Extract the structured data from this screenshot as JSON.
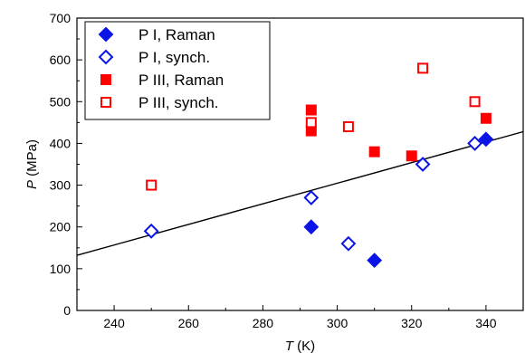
{
  "chart_data": {
    "type": "scatter",
    "title": "",
    "xlabel": {
      "italic": "T",
      "unit": " (K)"
    },
    "ylabel": {
      "italic": "P",
      "unit": " (MPa)"
    },
    "xlim": [
      230,
      350
    ],
    "ylim": [
      0,
      700
    ],
    "xticks": [
      240,
      260,
      280,
      300,
      320,
      340
    ],
    "yticks": [
      0,
      100,
      200,
      300,
      400,
      500,
      600,
      700
    ],
    "grid": false,
    "legend_position": "top-left",
    "series": [
      {
        "name": "P I, Raman",
        "marker": "diamond",
        "filled": true,
        "color": "#0a14e6",
        "points": [
          [
            293,
            200
          ],
          [
            310,
            120
          ],
          [
            340,
            410
          ]
        ]
      },
      {
        "name": "P I, synch.",
        "marker": "diamond",
        "filled": false,
        "color": "#0a14e6",
        "points": [
          [
            250,
            190
          ],
          [
            293,
            270
          ],
          [
            303,
            160
          ],
          [
            323,
            350
          ],
          [
            337,
            400
          ]
        ]
      },
      {
        "name": "P III, Raman",
        "marker": "square",
        "filled": true,
        "color": "#ff0000",
        "points": [
          [
            293,
            480
          ],
          [
            293,
            430
          ],
          [
            310,
            380
          ],
          [
            320,
            370
          ],
          [
            340,
            460
          ]
        ]
      },
      {
        "name": "P III, synch.",
        "marker": "square",
        "filled": false,
        "color": "#ff0000",
        "points": [
          [
            250,
            300
          ],
          [
            293,
            450
          ],
          [
            303,
            440
          ],
          [
            323,
            580
          ],
          [
            337,
            500
          ]
        ]
      }
    ],
    "fit_line": {
      "color": "#000000",
      "points": [
        [
          230,
          132
        ],
        [
          350,
          428
        ]
      ]
    }
  }
}
